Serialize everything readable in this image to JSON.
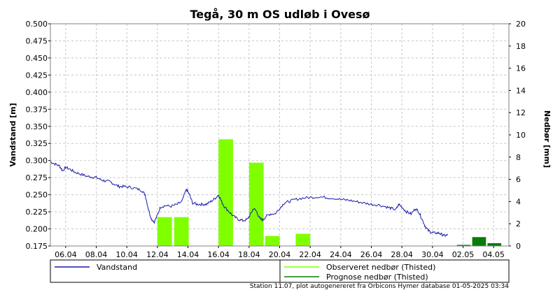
{
  "chart_data": {
    "type": "bar+line",
    "title": "Tegå, 30 m OS udløb i Ovesø",
    "ylabel_left": "Vandstand [m]",
    "ylabel_right": "Nedbør [mm]",
    "ylim_left": [
      0.175,
      0.5
    ],
    "ylim_right": [
      0,
      20
    ],
    "x_start_day": 5,
    "x_end_day": 35,
    "left_ticks": [
      "0.175",
      "0.200",
      "0.225",
      "0.250",
      "0.275",
      "0.300",
      "0.325",
      "0.350",
      "0.375",
      "0.400",
      "0.425",
      "0.450",
      "0.475",
      "0.500"
    ],
    "right_ticks": [
      "0",
      "2",
      "4",
      "6",
      "8",
      "10",
      "12",
      "14",
      "16",
      "18",
      "20"
    ],
    "x_ticks": [
      {
        "day": 6,
        "label": "06.04"
      },
      {
        "day": 8,
        "label": "08.04"
      },
      {
        "day": 10,
        "label": "10.04"
      },
      {
        "day": 12,
        "label": "12.04"
      },
      {
        "day": 14,
        "label": "14.04"
      },
      {
        "day": 16,
        "label": "16.04"
      },
      {
        "day": 18,
        "label": "18.04"
      },
      {
        "day": 20,
        "label": "20.04"
      },
      {
        "day": 22,
        "label": "22.04"
      },
      {
        "day": 24,
        "label": "24.04"
      },
      {
        "day": 26,
        "label": "26.04"
      },
      {
        "day": 28,
        "label": "28.04"
      },
      {
        "day": 30,
        "label": "30.04"
      },
      {
        "day": 32,
        "label": "02.05"
      },
      {
        "day": 34,
        "label": "04.05"
      }
    ],
    "grid": true,
    "series": [
      {
        "name": "Vandstand",
        "type": "line",
        "color": "#1a1aa6",
        "axis": "left",
        "points": [
          [
            5.0,
            0.298
          ],
          [
            5.3,
            0.295
          ],
          [
            5.6,
            0.292
          ],
          [
            5.8,
            0.285
          ],
          [
            6.0,
            0.29
          ],
          [
            6.3,
            0.287
          ],
          [
            6.6,
            0.283
          ],
          [
            7.0,
            0.28
          ],
          [
            7.4,
            0.277
          ],
          [
            7.7,
            0.276
          ],
          [
            8.0,
            0.275
          ],
          [
            8.3,
            0.272
          ],
          [
            8.6,
            0.27
          ],
          [
            8.9,
            0.269
          ],
          [
            9.2,
            0.265
          ],
          [
            9.5,
            0.262
          ],
          [
            9.8,
            0.262
          ],
          [
            10.2,
            0.261
          ],
          [
            10.6,
            0.259
          ],
          [
            11.0,
            0.256
          ],
          [
            11.2,
            0.25
          ],
          [
            11.4,
            0.23
          ],
          [
            11.6,
            0.215
          ],
          [
            11.8,
            0.21
          ],
          [
            12.0,
            0.22
          ],
          [
            12.2,
            0.232
          ],
          [
            12.5,
            0.234
          ],
          [
            12.9,
            0.233
          ],
          [
            13.3,
            0.236
          ],
          [
            13.6,
            0.24
          ],
          [
            13.9,
            0.258
          ],
          [
            14.1,
            0.25
          ],
          [
            14.3,
            0.238
          ],
          [
            14.6,
            0.236
          ],
          [
            14.9,
            0.236
          ],
          [
            15.2,
            0.236
          ],
          [
            15.5,
            0.24
          ],
          [
            15.8,
            0.245
          ],
          [
            16.0,
            0.25
          ],
          [
            16.2,
            0.24
          ],
          [
            16.4,
            0.232
          ],
          [
            16.7,
            0.225
          ],
          [
            17.0,
            0.218
          ],
          [
            17.3,
            0.214
          ],
          [
            17.6,
            0.212
          ],
          [
            17.9,
            0.214
          ],
          [
            18.1,
            0.222
          ],
          [
            18.3,
            0.23
          ],
          [
            18.5,
            0.225
          ],
          [
            18.7,
            0.215
          ],
          [
            18.9,
            0.213
          ],
          [
            19.1,
            0.218
          ],
          [
            19.4,
            0.222
          ],
          [
            19.7,
            0.222
          ],
          [
            20.0,
            0.23
          ],
          [
            20.3,
            0.238
          ],
          [
            20.6,
            0.24
          ],
          [
            21.0,
            0.243
          ],
          [
            21.5,
            0.245
          ],
          [
            22.0,
            0.246
          ],
          [
            22.5,
            0.247
          ],
          [
            23.0,
            0.246
          ],
          [
            23.5,
            0.245
          ],
          [
            24.0,
            0.243
          ],
          [
            24.5,
            0.242
          ],
          [
            25.0,
            0.24
          ],
          [
            25.5,
            0.238
          ],
          [
            26.0,
            0.236
          ],
          [
            26.5,
            0.235
          ],
          [
            27.0,
            0.232
          ],
          [
            27.3,
            0.23
          ],
          [
            27.6,
            0.228
          ],
          [
            27.8,
            0.236
          ],
          [
            28.0,
            0.232
          ],
          [
            28.3,
            0.225
          ],
          [
            28.6,
            0.222
          ],
          [
            28.9,
            0.23
          ],
          [
            29.1,
            0.225
          ],
          [
            29.3,
            0.215
          ],
          [
            29.5,
            0.205
          ],
          [
            29.7,
            0.198
          ],
          [
            29.9,
            0.195
          ],
          [
            30.1,
            0.194
          ],
          [
            30.4,
            0.194
          ],
          [
            30.6,
            0.192
          ],
          [
            30.8,
            0.19
          ],
          [
            31.0,
            0.191
          ]
        ]
      },
      {
        "name": "Observeret nedbør (Thisted)",
        "type": "bar",
        "color": "#80ff00",
        "axis": "right",
        "bars": [
          {
            "start": 12.0,
            "end": 12.95,
            "value": 2.6
          },
          {
            "start": 13.1,
            "end": 14.05,
            "value": 2.6
          },
          {
            "start": 16.0,
            "end": 16.95,
            "value": 9.6
          },
          {
            "start": 18.0,
            "end": 18.95,
            "value": 7.5
          },
          {
            "start": 19.05,
            "end": 20.0,
            "value": 0.9
          },
          {
            "start": 21.05,
            "end": 22.0,
            "value": 1.1
          }
        ]
      },
      {
        "name": "Prognose nedbør (Thisted)",
        "type": "bar",
        "color": "#0a7a0a",
        "axis": "right",
        "bars": [
          {
            "start": 31.6,
            "end": 32.5,
            "value": 0.1
          },
          {
            "start": 32.6,
            "end": 33.5,
            "value": 0.8
          },
          {
            "start": 33.6,
            "end": 34.5,
            "value": 0.25
          }
        ]
      }
    ],
    "legend": {
      "placement": "bottom",
      "items": [
        {
          "label": "Vandstand",
          "color": "#1a1aa6"
        },
        {
          "label": "Observeret nedbør (Thisted)",
          "color": "#80ff00"
        },
        {
          "label": "Prognose nedbør (Thisted)",
          "color": "#0a7a0a"
        }
      ]
    },
    "footer": "Station 11.07, plot autogenereret fra Orbicons Hymer database 01-05-2025 03:34"
  }
}
